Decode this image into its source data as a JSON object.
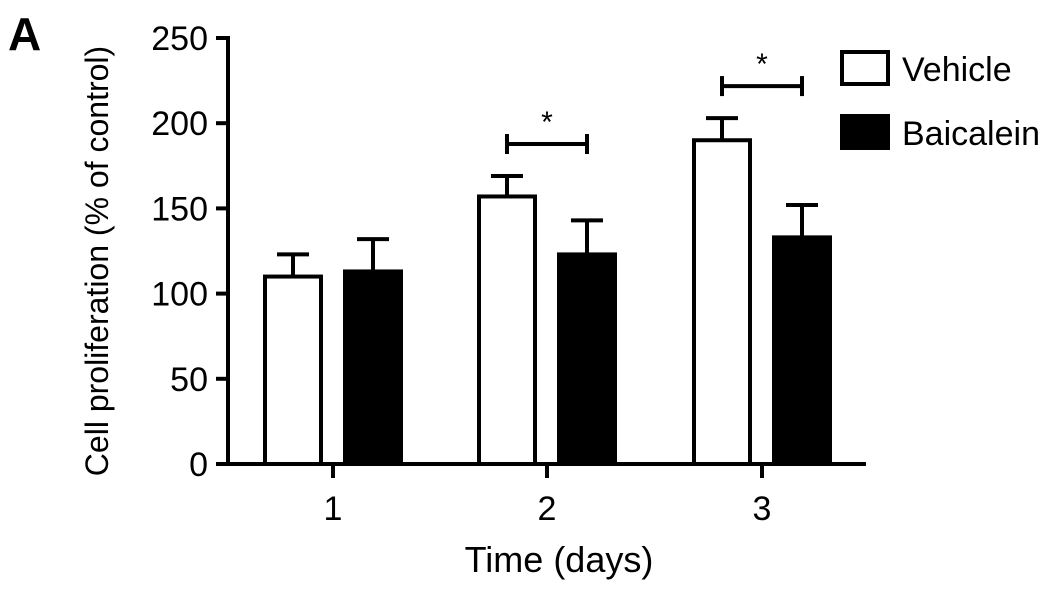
{
  "panel_label": "A",
  "chart_data": {
    "type": "bar",
    "title": "",
    "xlabel": "Time (days)",
    "ylabel": "Cell proliferation (% of control)",
    "categories": [
      "1",
      "2",
      "3"
    ],
    "ylim": [
      0,
      250
    ],
    "yticks": [
      0,
      50,
      100,
      150,
      200,
      250
    ],
    "series": [
      {
        "name": "Vehicle",
        "fill": "#ffffff",
        "values": [
          110,
          157,
          190
        ],
        "errors": [
          13,
          12,
          13
        ]
      },
      {
        "name": "Baicalein",
        "fill": "#000000",
        "values": [
          113,
          123,
          133
        ],
        "errors": [
          19,
          20,
          19
        ]
      }
    ],
    "significance": [
      {
        "category": "2",
        "label": "*"
      },
      {
        "category": "3",
        "label": "*"
      }
    ],
    "legend_position": "top-right",
    "grid": false,
    "colors": {
      "axis": "#000000",
      "bar_outline": "#000000"
    }
  }
}
